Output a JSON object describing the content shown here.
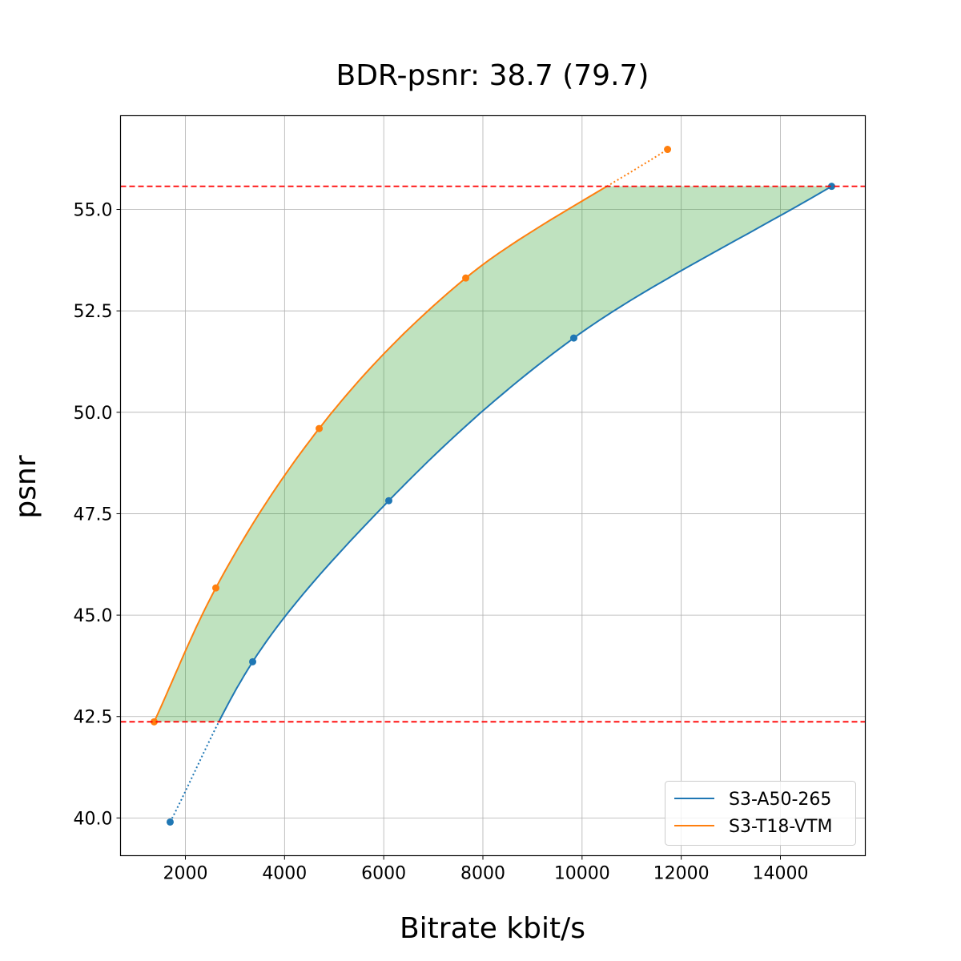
{
  "chart_data": {
    "type": "line",
    "title": "BDR-psnr: 38.7 (79.7)",
    "xlabel": "Bitrate kbit/s",
    "ylabel": "psnr",
    "xlim": [
      692,
      15712
    ],
    "ylim": [
      39.07,
      57.31
    ],
    "xticks": [
      2000,
      4000,
      6000,
      8000,
      10000,
      12000,
      14000
    ],
    "yticks": [
      40.0,
      42.5,
      45.0,
      47.5,
      50.0,
      52.5,
      55.0
    ],
    "grid": true,
    "legend_position": "lower right",
    "series": [
      {
        "name": "S3-A50-265",
        "color": "#1f77b4",
        "x": [
          1693,
          3357,
          6102,
          9833,
          15033
        ],
        "y": [
          39.9,
          43.85,
          47.82,
          51.83,
          55.57
        ]
      },
      {
        "name": "S3-T18-VTM",
        "color": "#ff7f0e",
        "x": [
          1370,
          2614,
          4698,
          7654,
          11724
        ],
        "y": [
          42.37,
          45.67,
          49.6,
          53.31,
          56.48
        ]
      }
    ],
    "reference_lines": {
      "y": [
        42.37,
        55.57
      ],
      "color": "#ff0000",
      "style": "dashed"
    },
    "fill_between": {
      "color": "#2ca02c",
      "opacity": 0.3,
      "y_range": [
        42.37,
        55.57
      ]
    }
  }
}
